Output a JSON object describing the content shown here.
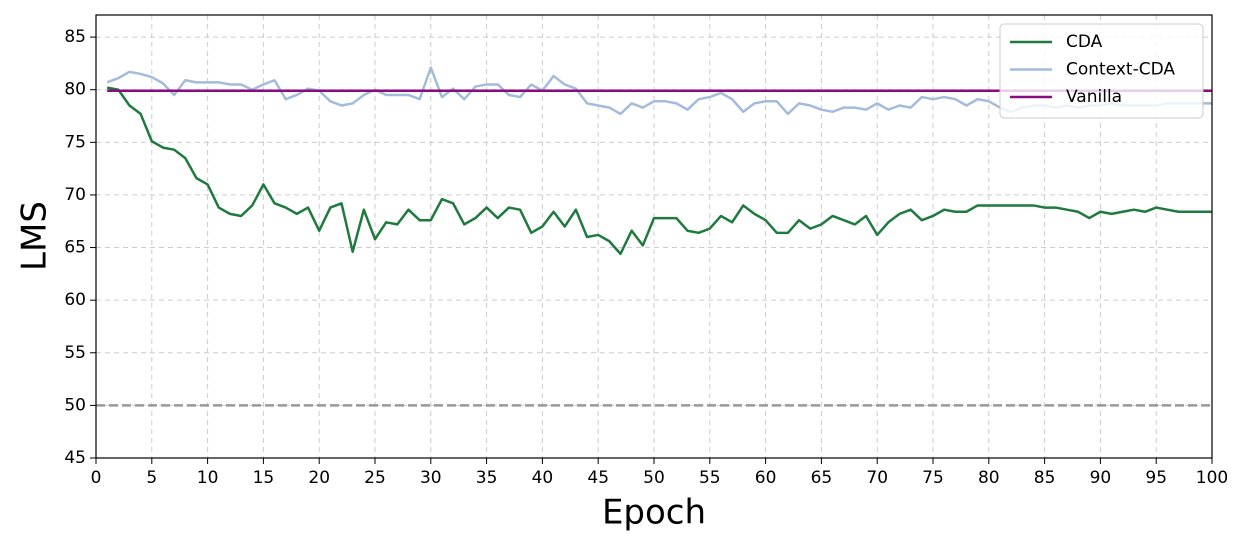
{
  "chart_data": {
    "type": "line",
    "x_label": "Epoch",
    "y_label": "LMS",
    "x": [
      1,
      2,
      3,
      4,
      5,
      6,
      7,
      8,
      9,
      10,
      11,
      12,
      13,
      14,
      15,
      16,
      17,
      18,
      19,
      20,
      21,
      22,
      23,
      24,
      25,
      26,
      27,
      28,
      29,
      30,
      31,
      32,
      33,
      34,
      35,
      36,
      37,
      38,
      39,
      40,
      41,
      42,
      43,
      44,
      45,
      46,
      47,
      48,
      49,
      50,
      51,
      52,
      53,
      54,
      55,
      56,
      57,
      58,
      59,
      60,
      61,
      62,
      63,
      64,
      65,
      66,
      67,
      68,
      69,
      70,
      71,
      72,
      73,
      74,
      75,
      76,
      77,
      78,
      79,
      80,
      81,
      82,
      83,
      84,
      85,
      86,
      87,
      88,
      89,
      90,
      91,
      92,
      93,
      94,
      95,
      96,
      97,
      98,
      99,
      100
    ],
    "series": [
      {
        "name": "CDA",
        "color": "#1f7a3e",
        "values": [
          80.2,
          80.0,
          78.5,
          77.7,
          75.1,
          74.5,
          74.3,
          73.5,
          71.6,
          71.0,
          68.8,
          68.2,
          68.0,
          69.0,
          71.0,
          69.2,
          68.8,
          68.2,
          68.8,
          66.6,
          68.8,
          69.2,
          64.6,
          68.6,
          65.8,
          67.4,
          67.2,
          68.6,
          67.6,
          67.6,
          69.6,
          69.2,
          67.2,
          67.8,
          68.8,
          67.8,
          68.8,
          68.6,
          66.4,
          67.0,
          68.4,
          67.0,
          68.6,
          66.0,
          66.2,
          65.6,
          64.4,
          66.6,
          65.2,
          67.8,
          67.8,
          67.8,
          66.6,
          66.4,
          66.8,
          68.0,
          67.4,
          69.0,
          68.2,
          67.6,
          66.4,
          66.4,
          67.6,
          66.8,
          67.2,
          68.0,
          67.6,
          67.2,
          68.0,
          66.2,
          67.4,
          68.2,
          68.6,
          67.6,
          68.0,
          68.6,
          68.4,
          68.4,
          69.0,
          69.0,
          69.0,
          69.0,
          69.0,
          69.0,
          68.8,
          68.8,
          68.6,
          68.4,
          67.8,
          68.4,
          68.2,
          68.4,
          68.6,
          68.4,
          68.8,
          68.6,
          68.4,
          68.4,
          68.4,
          68.4
        ]
      },
      {
        "name": "Context-CDA",
        "color": "#a3bcdc",
        "values": [
          80.7,
          81.1,
          81.7,
          81.5,
          81.2,
          80.6,
          79.5,
          80.9,
          80.7,
          80.7,
          80.7,
          80.5,
          80.5,
          80.0,
          80.5,
          80.9,
          79.1,
          79.5,
          80.1,
          79.9,
          78.9,
          78.5,
          78.7,
          79.5,
          80.0,
          79.5,
          79.5,
          79.5,
          79.1,
          82.1,
          79.3,
          80.1,
          79.1,
          80.3,
          80.5,
          80.5,
          79.5,
          79.3,
          80.5,
          79.9,
          81.3,
          80.5,
          80.1,
          78.7,
          78.5,
          78.3,
          77.7,
          78.7,
          78.3,
          78.9,
          78.9,
          78.7,
          78.1,
          79.1,
          79.3,
          79.7,
          79.1,
          77.9,
          78.7,
          78.9,
          78.9,
          77.7,
          78.7,
          78.5,
          78.1,
          77.9,
          78.3,
          78.3,
          78.1,
          78.7,
          78.1,
          78.5,
          78.3,
          79.3,
          79.1,
          79.3,
          79.1,
          78.5,
          79.1,
          78.9,
          78.3,
          77.9,
          78.3,
          78.5,
          78.5,
          78.3,
          78.5,
          78.3,
          78.5,
          78.5,
          78.7,
          78.5,
          78.5,
          78.5,
          78.5,
          78.7,
          78.7,
          78.7,
          78.7,
          78.7
        ]
      },
      {
        "name": "Vanilla",
        "color": "#8b0a80",
        "x": [
          1,
          100
        ],
        "values": [
          79.9,
          79.9
        ]
      }
    ],
    "reference_line": {
      "value": 50,
      "color": "#999999",
      "style": "dashed"
    },
    "xlim": [
      0,
      100
    ],
    "xticks": [
      0,
      5,
      10,
      15,
      20,
      25,
      30,
      35,
      40,
      45,
      50,
      55,
      60,
      65,
      70,
      75,
      80,
      85,
      90,
      95,
      100
    ],
    "ylim": [
      45,
      87.1
    ],
    "yticks": [
      45,
      50,
      55,
      60,
      65,
      70,
      75,
      80,
      85
    ],
    "grid": true,
    "legend": "upper right"
  }
}
